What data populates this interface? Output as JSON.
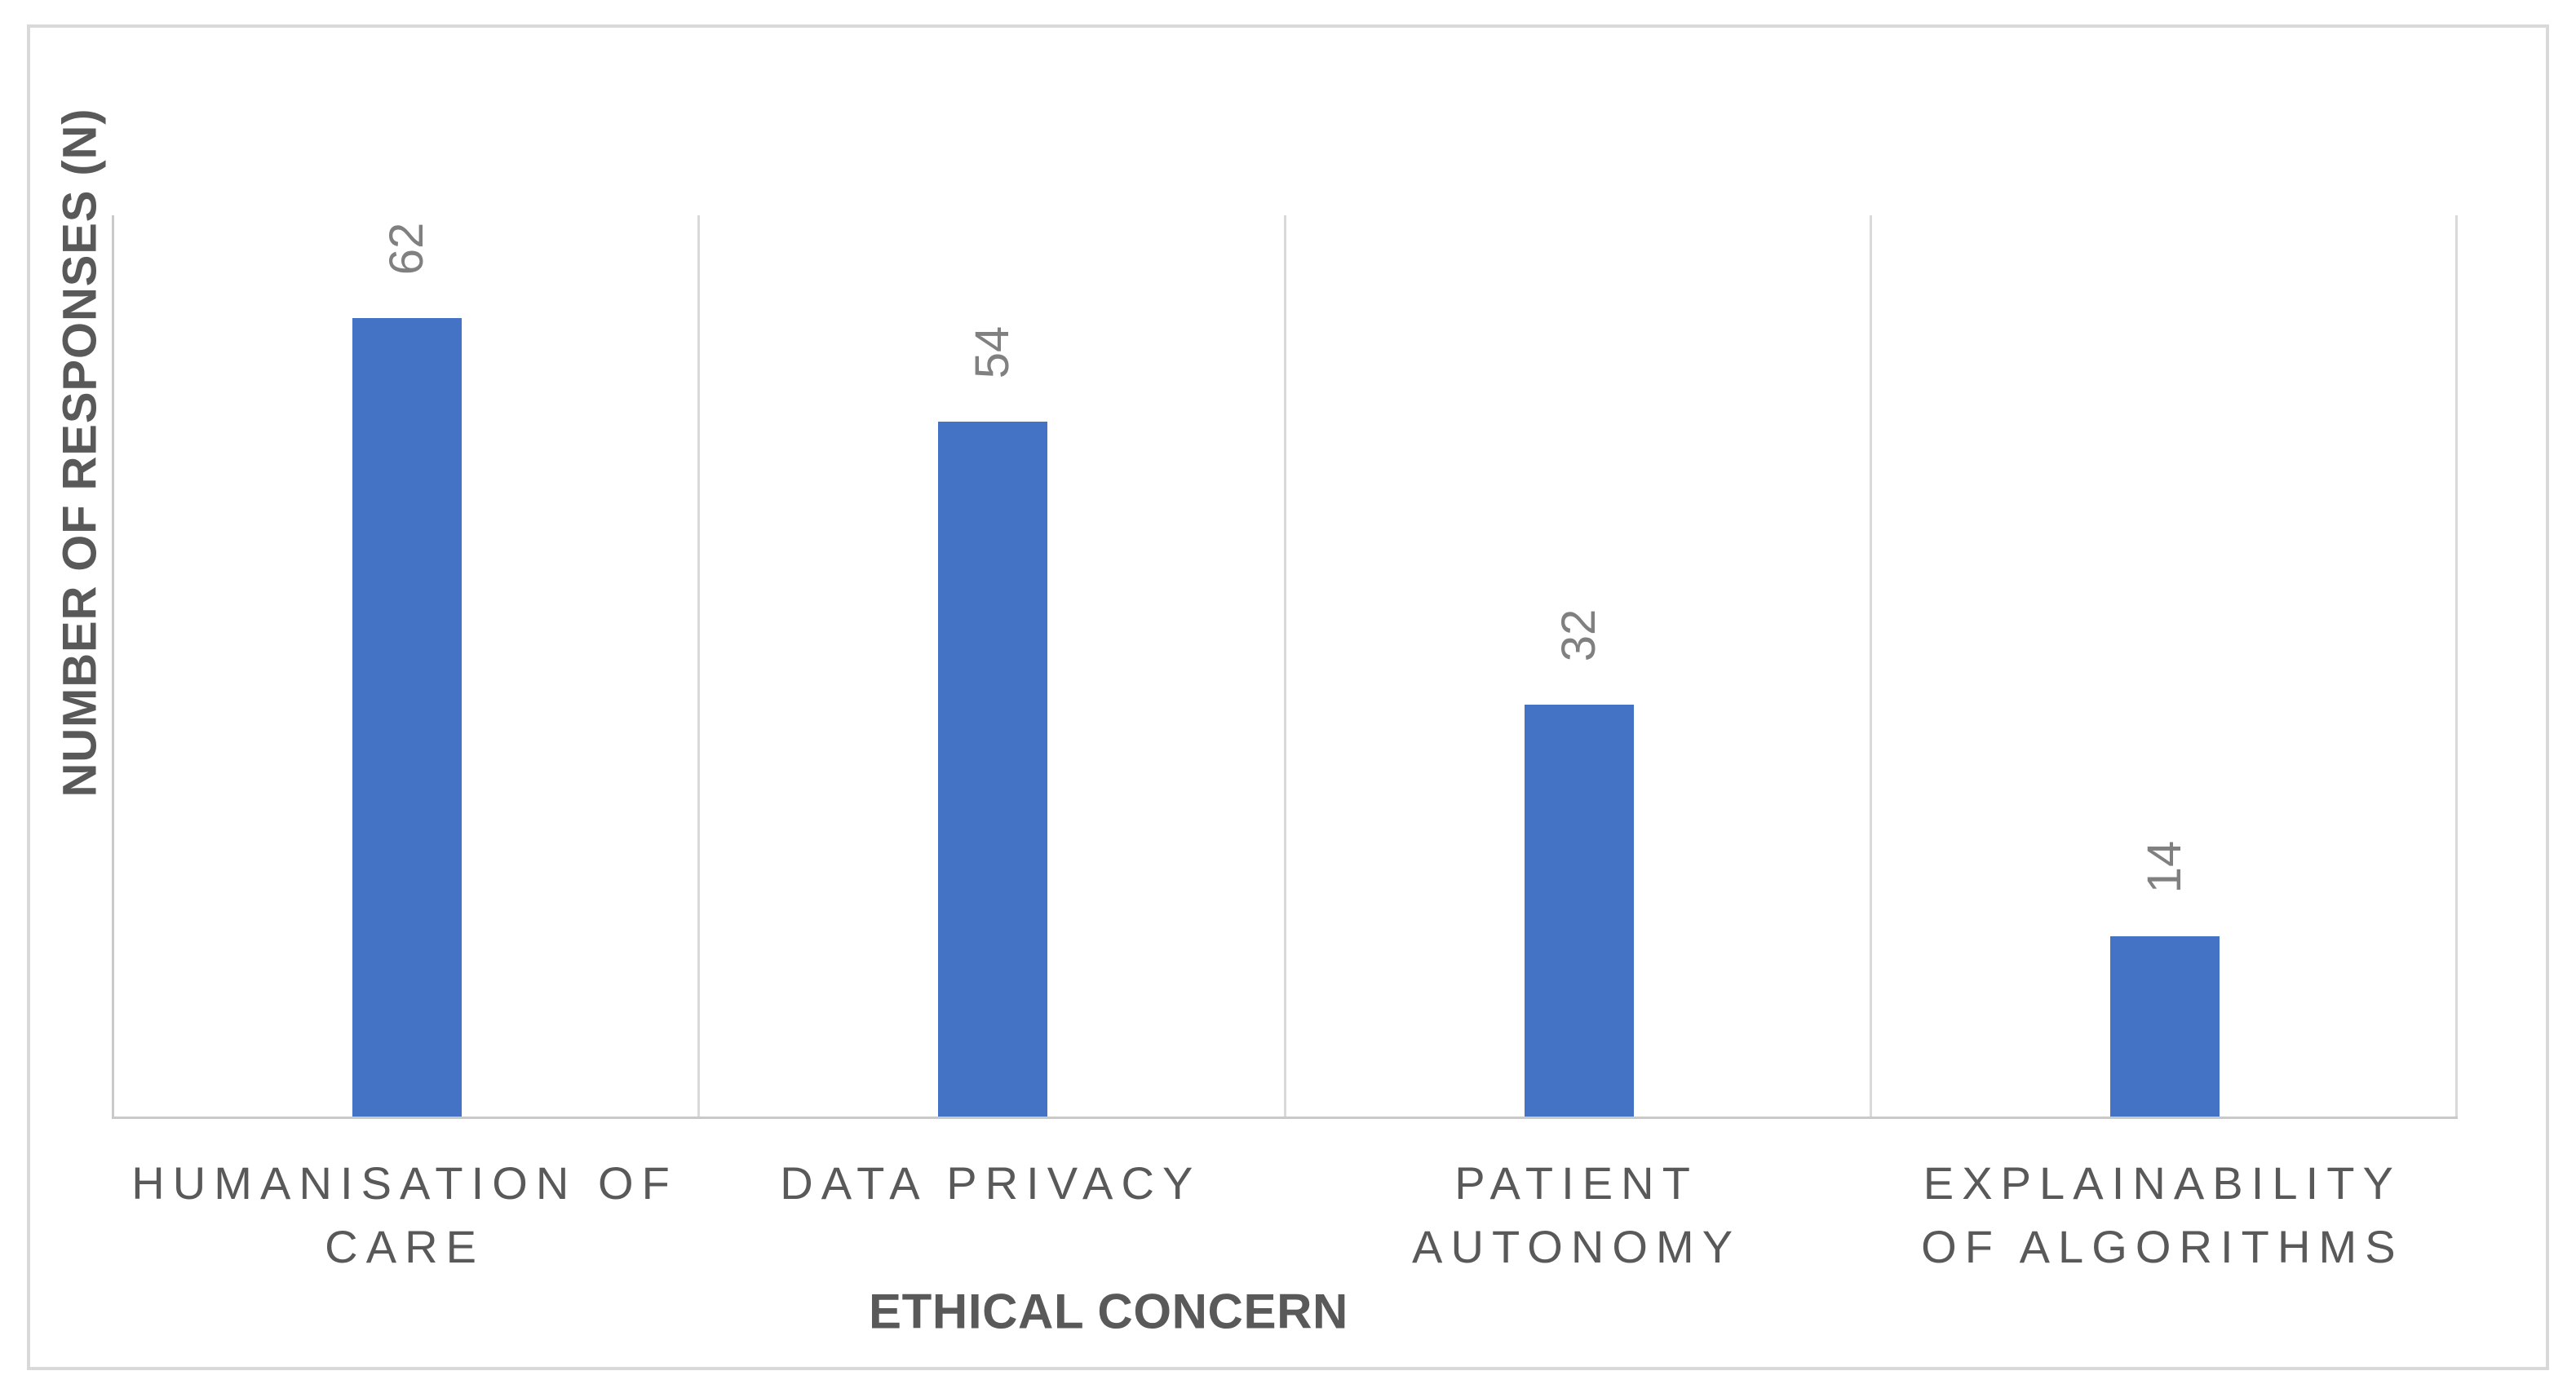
{
  "chart_data": {
    "type": "bar",
    "title": "",
    "categories": [
      "HUMANISATION OF CARE",
      "DATA PRIVACY",
      "PATIENT AUTONOMY",
      "EXPLAINABILITY OF ALGORITHMS"
    ],
    "values": [
      62,
      54,
      32,
      14
    ],
    "xlabel": "ETHICAL CONCERN",
    "ylabel": "NUMBER OF RESPONSES (N)",
    "ylim": [
      0,
      70
    ],
    "grid": "vertical-category-separators-only",
    "legend": "none",
    "data_label_rotation_deg": -90,
    "colors": {
      "bar": "#4472C4",
      "data_label": "#808080",
      "category_label": "#595959",
      "axis_title": "#595959",
      "gridline": "#D9D9D9",
      "axis_line": "#C9C9C9",
      "figure_border": "#D9D9D9",
      "background": "#FFFFFF"
    }
  }
}
